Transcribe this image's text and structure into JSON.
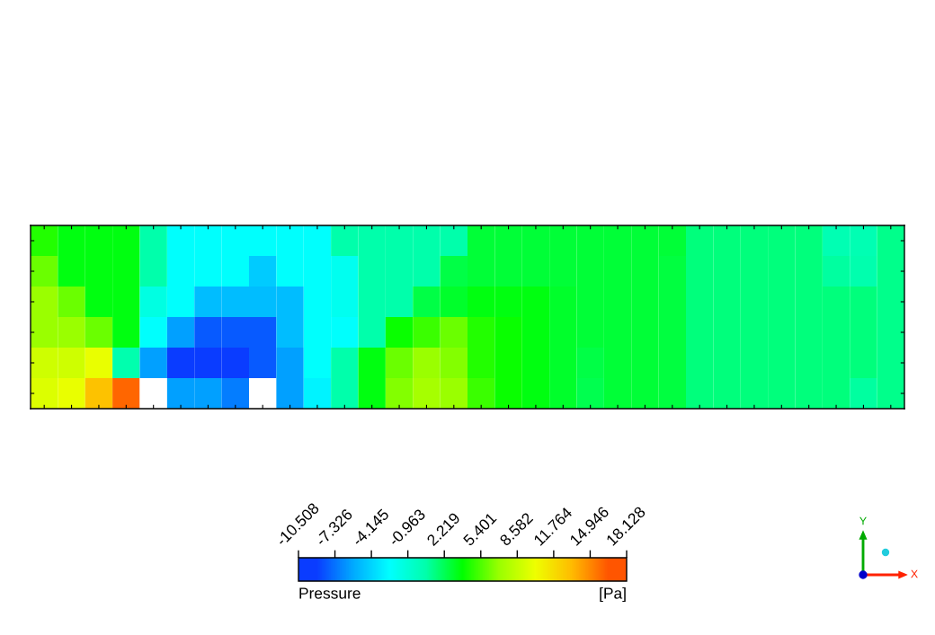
{
  "chart_data": {
    "type": "heatmap",
    "clabel": "Pressure",
    "annotations": [
      "[Pa]",
      "Y",
      "X"
    ],
    "categories": [
      null,
      null,
      null,
      null,
      null,
      null,
      null,
      null,
      null,
      null,
      null,
      null,
      null,
      null,
      null,
      null,
      null,
      null,
      null,
      null,
      null,
      null,
      null,
      null,
      null,
      null,
      null,
      null,
      null,
      null,
      null,
      null
    ],
    "y_categories": [
      null,
      null,
      null,
      null,
      null,
      null
    ],
    "cells": [
      [
        4.5,
        3.5,
        3.5,
        3.5,
        0.6,
        -2.5,
        -2.5,
        -2.5,
        -2.5,
        -2.5,
        -2.5,
        0.6,
        0.6,
        0.6,
        0.6,
        0.6,
        2.8,
        2.8,
        2.8,
        2.8,
        2.8,
        2.8,
        2.8,
        2.8,
        1.5,
        1.5,
        1.5,
        1.5,
        1.5,
        0.3,
        0.3,
        1.2
      ],
      [
        6,
        3.5,
        3.5,
        3.5,
        0.6,
        -2.5,
        -2.5,
        -2.5,
        -4.5,
        -2.5,
        -2.5,
        -2,
        0.6,
        0.6,
        0.6,
        2.5,
        2.8,
        2.8,
        2.8,
        2.8,
        2.8,
        2.8,
        2.8,
        2.6,
        1.5,
        1.5,
        1.5,
        1.5,
        1.5,
        0.8,
        0.5,
        1.2
      ],
      [
        7,
        6,
        3.5,
        3.5,
        -1.5,
        -2.5,
        -5,
        -5,
        -5,
        -5,
        -2.5,
        -2,
        0.6,
        0.6,
        2.5,
        3,
        3.5,
        3.5,
        3.5,
        3,
        2.8,
        2.8,
        2.8,
        2.6,
        1.5,
        1.5,
        1.5,
        1.5,
        1.5,
        1.5,
        1.5,
        1.2
      ],
      [
        7,
        7,
        6,
        3.5,
        -2.5,
        -6,
        -8,
        -8,
        -8,
        -5,
        -2.5,
        -2.5,
        0.6,
        4,
        5,
        6,
        4.5,
        4,
        3.5,
        3,
        2.8,
        2.8,
        2.8,
        2.6,
        1.5,
        1.5,
        1.5,
        1.5,
        1.5,
        1.5,
        1.5,
        1.2
      ],
      [
        9,
        9,
        10,
        0.5,
        -6,
        -9,
        -9,
        -9,
        -8,
        -6,
        -2.5,
        0.6,
        3.5,
        6,
        7,
        6.5,
        4.5,
        4,
        3.5,
        3,
        2.5,
        2.8,
        2.8,
        2.6,
        1.5,
        1.5,
        1.5,
        1.5,
        1.5,
        1.5,
        1.5,
        1.2
      ],
      [
        9.5,
        10,
        13,
        16,
        null,
        -6,
        -6,
        -7,
        null,
        -6,
        -3,
        0.6,
        3.5,
        6.5,
        7.5,
        7,
        5,
        4,
        3.5,
        3,
        2.3,
        2.8,
        2.8,
        2.6,
        1.5,
        1.5,
        1.5,
        1.5,
        1.5,
        1.5,
        0.8,
        1.2
      ]
    ],
    "colors": [
      "#0a3cff",
      "#00aaff",
      "#00ffff",
      "#00ffaa",
      "#00ff00",
      "#99ff00",
      "#eeff00",
      "#ffbb00",
      "#ff5500"
    ],
    "clim": [
      -10.508,
      18.128
    ],
    "cticks": [
      -10.508,
      -7.326,
      -4.145,
      -0.963,
      2.219,
      5.401,
      8.582,
      11.764,
      14.946,
      18.128
    ]
  }
}
